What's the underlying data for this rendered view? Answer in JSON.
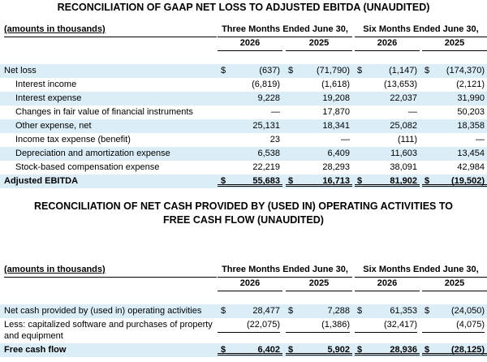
{
  "ebitda": {
    "title": "RECONCILIATION OF GAAP NET LOSS TO ADJUSTED EBITDA (UNAUDITED)",
    "amounts_label": "(amounts in thousands)",
    "period_3m": "Three Months Ended June 30,",
    "period_6m": "Six Months Ended June 30,",
    "years": [
      "2026",
      "2025",
      "2026",
      "2025"
    ],
    "rows": [
      {
        "label": "Net loss",
        "dollar": "$",
        "values": [
          "(637)",
          "(71,790)",
          "(1,147)",
          "(174,370)"
        ]
      },
      {
        "label": "Interest income",
        "values": [
          "(6,819)",
          "(1,618)",
          "(13,653)",
          "(2,121)"
        ]
      },
      {
        "label": "Interest expense",
        "values": [
          "9,228",
          "19,208",
          "22,037",
          "31,990"
        ]
      },
      {
        "label": "Changes in fair value of financial instruments",
        "values": [
          "—",
          "17,870",
          "—",
          "50,203"
        ]
      },
      {
        "label": "Other expense, net",
        "values": [
          "25,131",
          "18,341",
          "25,082",
          "18,358"
        ]
      },
      {
        "label": "Income tax expense (benefit)",
        "values": [
          "23",
          "—",
          "(111)",
          "—"
        ]
      },
      {
        "label": "Depreciation and amortization expense",
        "values": [
          "6,538",
          "6,409",
          "11,603",
          "13,454"
        ]
      },
      {
        "label": "Stock-based compensation expense",
        "values": [
          "22,219",
          "28,293",
          "38,091",
          "42,984"
        ]
      }
    ],
    "total": {
      "label": "Adjusted EBITDA",
      "dollar": "$",
      "values": [
        "55,683",
        "16,713",
        "81,902",
        "(19,502)"
      ]
    }
  },
  "fcf": {
    "title": "RECONCILIATION OF NET CASH PROVIDED BY (USED IN) OPERATING ACTIVITIES TO FREE CASH FLOW (UNAUDITED)",
    "amounts_label": "(amounts in thousands)",
    "period_3m": "Three Months Ended June 30,",
    "period_6m": "Six Months Ended June 30,",
    "years": [
      "2026",
      "2025",
      "2026",
      "2025"
    ],
    "rows": [
      {
        "label": "Net cash provided by (used in) operating activities",
        "dollar": "$",
        "values": [
          "28,477",
          "7,288",
          "61,353",
          "(24,050)"
        ]
      },
      {
        "label": "Less: capitalized software and purchases of property and equipment",
        "values": [
          "(22,075)",
          "(1,386)",
          "(32,417)",
          "(4,075)"
        ]
      }
    ],
    "total": {
      "label": "Free cash flow",
      "dollar": "$",
      "values": [
        "6,402",
        "5,902",
        "28,936",
        "(28,125)"
      ]
    }
  },
  "colors": {
    "shade": "#dbeef8"
  }
}
